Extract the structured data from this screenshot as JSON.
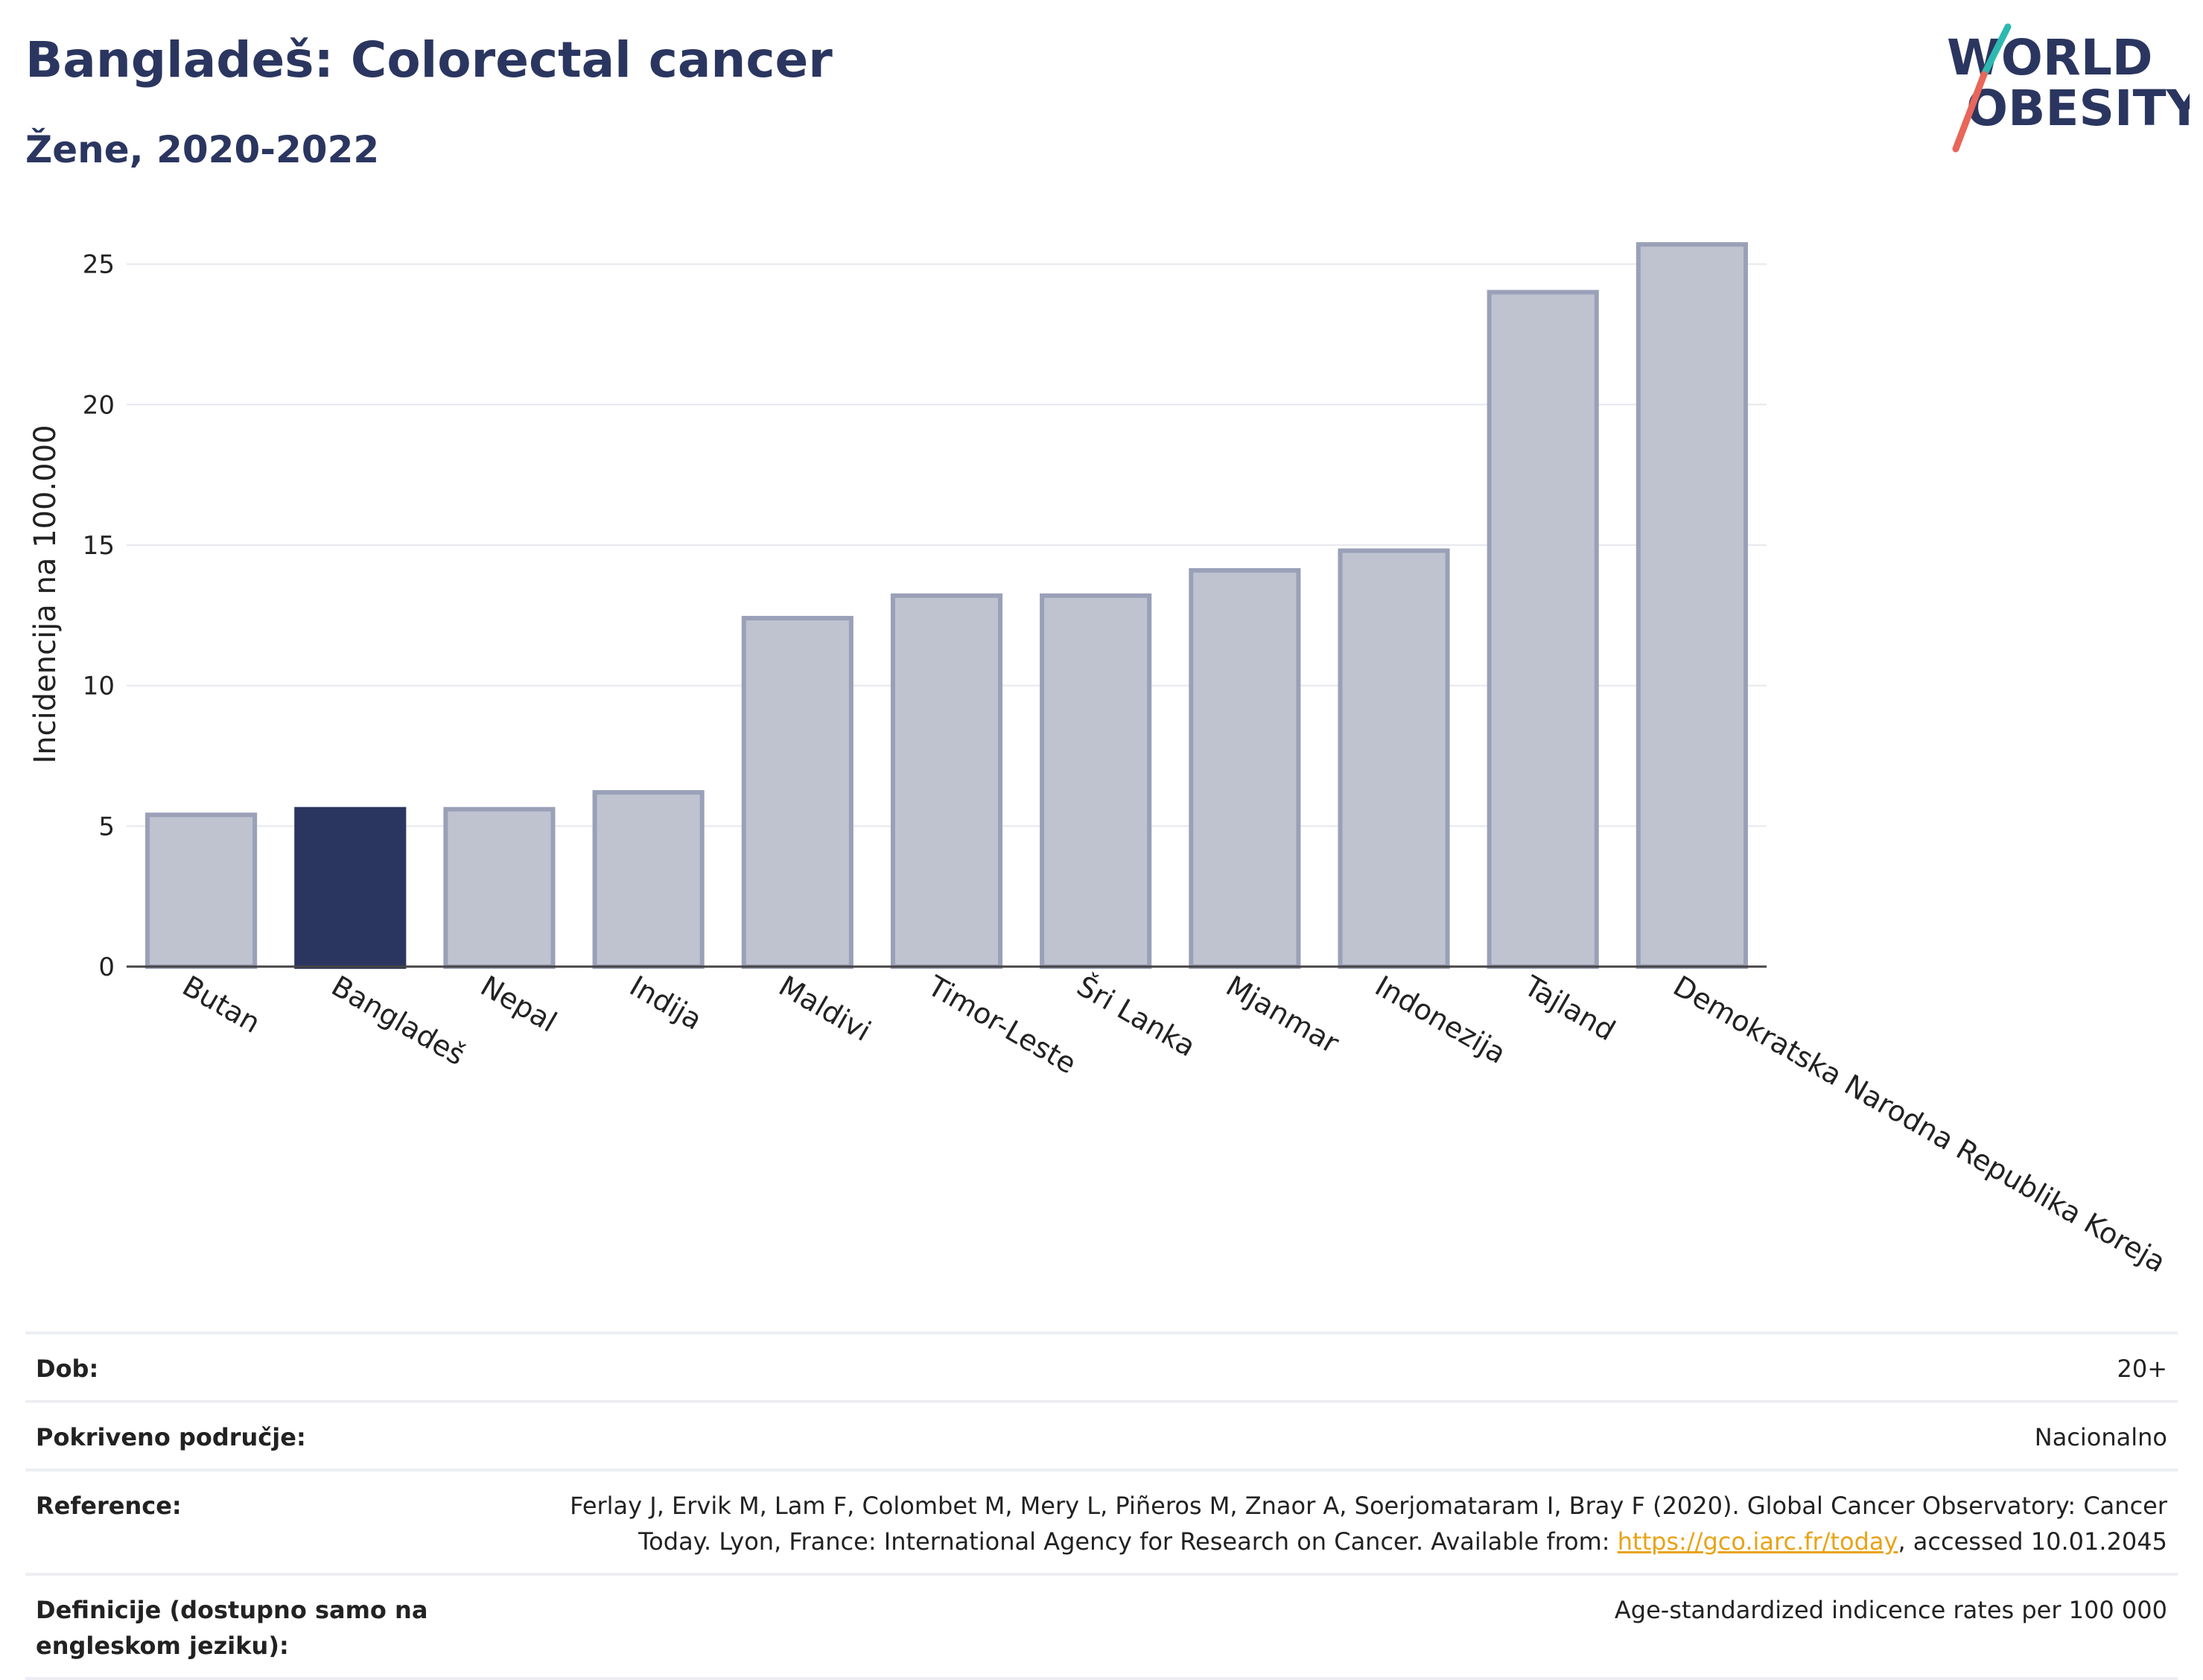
{
  "header": {
    "title": "Bangladeš: Colorectal cancer",
    "subtitle": "Žene, 2020-2022"
  },
  "logo": {
    "line1": "WORLD",
    "line2": "OBESITY"
  },
  "colors": {
    "highlight": "#2b3660",
    "bar_fill": "#bfc3d0",
    "bar_stroke": "#9aa0b7",
    "grid": "#e6e8ee",
    "logo_teal": "#2cb9b0",
    "logo_red": "#e8665a"
  },
  "chart_data": {
    "type": "bar",
    "title": "Bangladeš: Colorectal cancer",
    "subtitle": "Žene, 2020-2022",
    "ylabel": "Incidencija na 100.000",
    "xlabel": "",
    "ylim": [
      0,
      26.5
    ],
    "yticks": [
      0,
      5,
      10,
      15,
      20,
      25
    ],
    "grid": true,
    "highlight_category": "Bangladeš",
    "categories": [
      "Butan",
      "Bangladeš",
      "Nepal",
      "Indija",
      "Maldivi",
      "Timor-Leste",
      "Šri Lanka",
      "Mjanmar",
      "Indonezija",
      "Tajland",
      "Demokratska Narodna Republika Koreja"
    ],
    "values": [
      5.4,
      5.6,
      5.6,
      6.2,
      12.4,
      13.2,
      13.2,
      14.1,
      14.8,
      24.0,
      25.7
    ]
  },
  "info": [
    {
      "key": "Dob:",
      "value": "20+"
    },
    {
      "key": "Pokriveno područje:",
      "value": "Nacionalno"
    },
    {
      "key": "Reference:",
      "value_before": "Ferlay J, Ervik M, Lam F, Colombet M, Mery L, Piñeros M, Znaor A, Soerjomataram I, Bray F (2020). Global Cancer Observatory: Cancer Today. Lyon, France: International Agency for Research on Cancer. Available from: ",
      "link": "https://gco.iarc.fr/today",
      "value_after": ", accessed 10.01.2045"
    },
    {
      "key": "Definicije (dostupno samo na engleskom jeziku):",
      "value": "Age-standardized indicence rates per 100 000"
    }
  ]
}
